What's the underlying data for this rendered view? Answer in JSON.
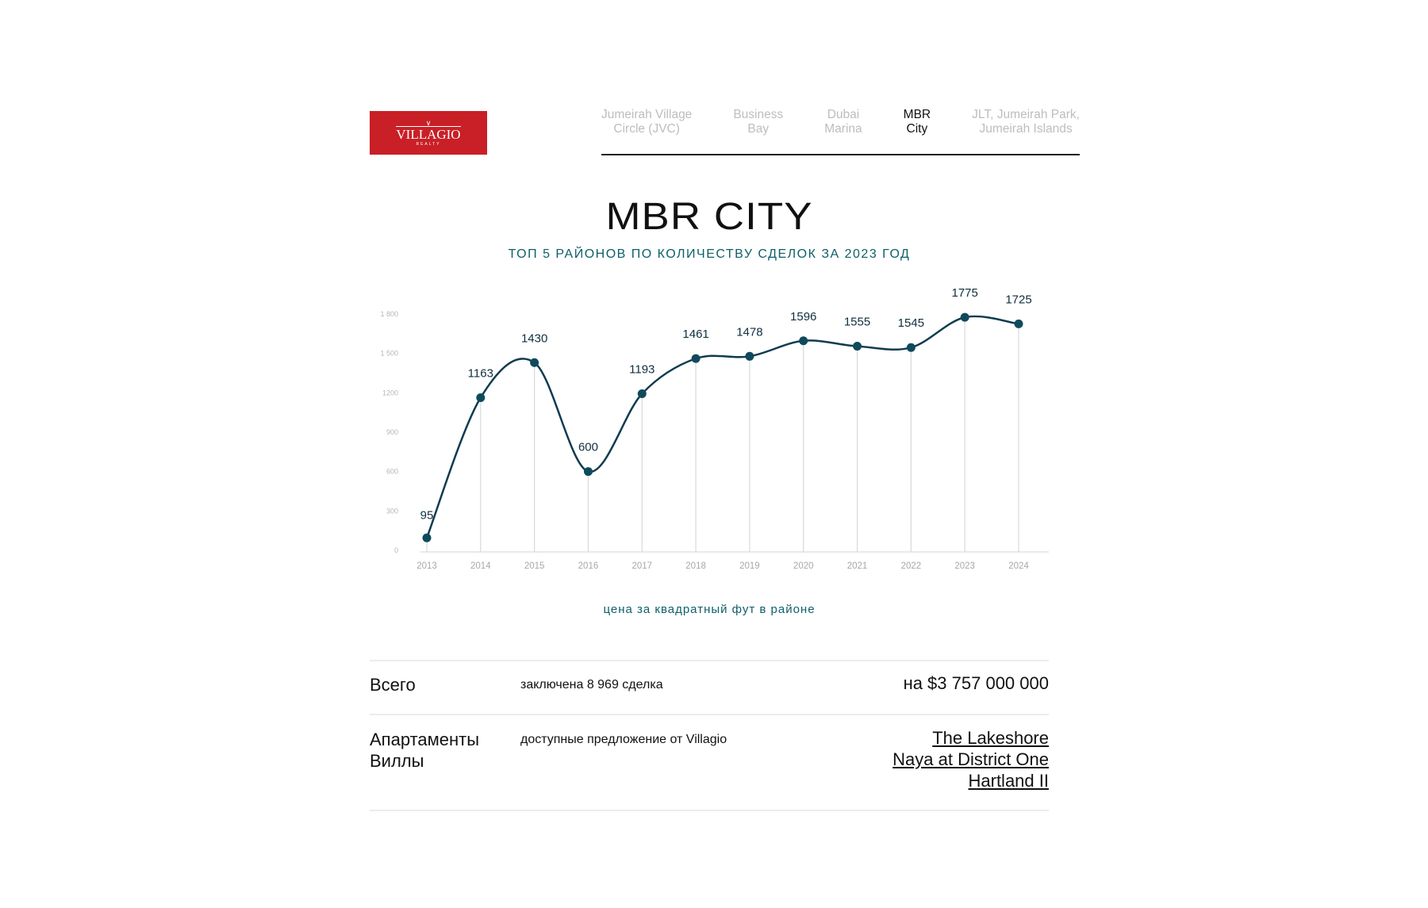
{
  "logo": {
    "name": "VILLAGIO",
    "sub": "REALTY",
    "brand_color": "#c91f26"
  },
  "nav": {
    "items": [
      {
        "label": "Jumeirah Village Circle (JVC)",
        "l1": "Jumeirah Village",
        "l2": "Circle (JVC)",
        "active": false
      },
      {
        "label": "Business Bay",
        "l1": "Business",
        "l2": "Bay",
        "active": false
      },
      {
        "label": "Dubai Marina",
        "l1": "Dubai",
        "l2": "Marina",
        "active": false
      },
      {
        "label": "MBR City",
        "l1": "MBR",
        "l2": "City",
        "active": true
      },
      {
        "label": "JLT, Jumeirah Park, Jumeirah Islands",
        "l1": "JLT, Jumeirah Park,",
        "l2": "Jumeirah Islands",
        "active": false
      }
    ]
  },
  "header": {
    "title": "MBR CITY",
    "subtitle": "ТОП 5 РАЙОНОВ ПО КОЛИЧЕСТВУ СДЕЛОК ЗА 2023 ГОД"
  },
  "chart_data": {
    "type": "line",
    "title": "",
    "xlabel": "цена за квадратный фут в районе",
    "ylabel": "",
    "categories": [
      "2013",
      "2014",
      "2015",
      "2016",
      "2017",
      "2018",
      "2019",
      "2020",
      "2021",
      "2022",
      "2023",
      "2024"
    ],
    "values": [
      95,
      1163,
      1430,
      600,
      1193,
      1461,
      1478,
      1596,
      1555,
      1545,
      1775,
      1725
    ],
    "y_ticks": [
      {
        "value": 0,
        "label": "0"
      },
      {
        "value": 300,
        "label": "300"
      },
      {
        "value": 600,
        "label": "600"
      },
      {
        "value": 900,
        "label": "900"
      },
      {
        "value": 1200,
        "label": "1200"
      },
      {
        "value": 1500,
        "label": "1 500"
      },
      {
        "value": 1800,
        "label": "1 800"
      }
    ],
    "ylim": [
      0,
      1800
    ],
    "smooth": true,
    "data_labels": true,
    "drop_lines": true,
    "line_color": "#0f3b4f",
    "grid": false
  },
  "summary": {
    "rows": [
      {
        "label": "Всего",
        "middle": "заключена 8 969 сделка",
        "right": "на $3 757 000 000"
      },
      {
        "label1": "Апартаменты",
        "label2": "Виллы",
        "middle": "доступные предложение от Villagio",
        "links": [
          "The Lakeshore",
          "Naya at District One",
          "Hartland II"
        ]
      }
    ]
  }
}
